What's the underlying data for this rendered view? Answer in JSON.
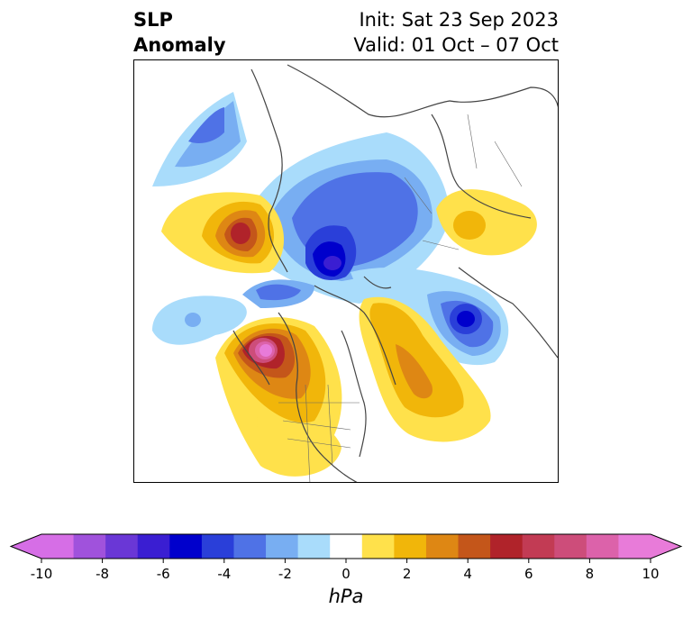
{
  "title": {
    "left_line1": "SLP",
    "left_line2": "Anomaly",
    "init": "Init: Sat 23 Sep 2023",
    "valid": "Valid: 01 Oct – 07 Oct"
  },
  "colorbar": {
    "units": "hPa",
    "ticks": [
      "-10",
      "-8",
      "-6",
      "-4",
      "-2",
      "0",
      "2",
      "4",
      "6",
      "8",
      "10"
    ],
    "colors": [
      "#d66ee6",
      "#a052dc",
      "#6a37d6",
      "#3a1ed2",
      "#0000cc",
      "#2a3fd9",
      "#4f72e6",
      "#78aef2",
      "#a9dcfb",
      "#ffffff",
      "#ffe14b",
      "#f1b60a",
      "#de8714",
      "#c4561a",
      "#b0232a",
      "#c23b54",
      "#cd4d7a",
      "#dc62aa",
      "#e87bd9"
    ],
    "min_color": "#d66ee6",
    "max_color": "#e87bd9"
  }
}
